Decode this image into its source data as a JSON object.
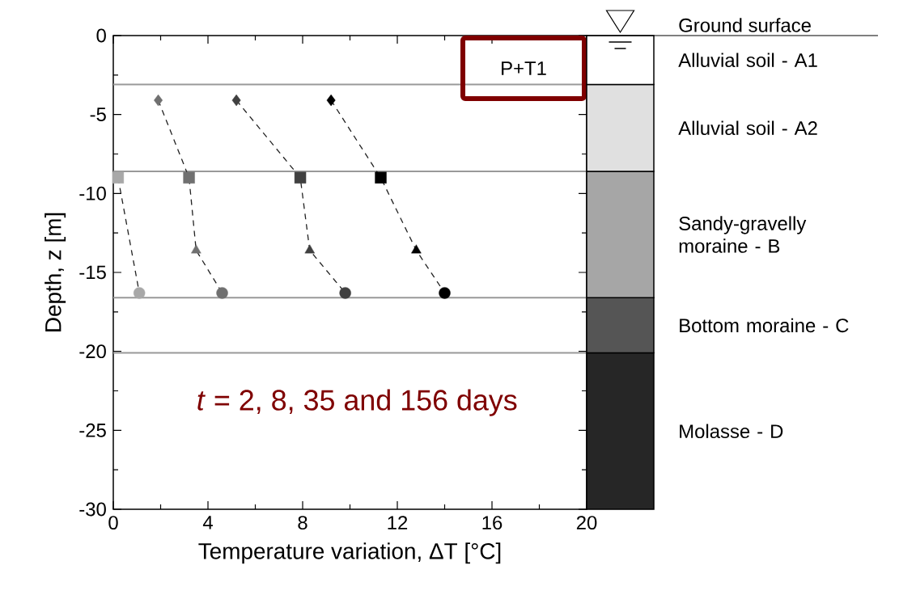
{
  "chart_data": [
    {
      "type": "line",
      "xlabel": "Temperature variation, ΔT [°C]",
      "ylabel": "Depth, z [m]",
      "xlim": [
        0,
        20
      ],
      "ylim": [
        -30,
        0
      ],
      "xticks": [
        0,
        4,
        8,
        12,
        16,
        20
      ],
      "yticks": [
        0,
        -5,
        -10,
        -15,
        -20,
        -25,
        -30
      ],
      "line_style": "dashed",
      "grid": false,
      "series": [
        {
          "type": "line",
          "color": "#222222",
          "x": [
            0.2,
            1.1
          ],
          "values": [
            -9.0,
            -16.3
          ]
        },
        {
          "type": "line",
          "color": "#222222",
          "x": [
            1.9,
            3.2,
            3.5,
            4.6
          ],
          "values": [
            -4.1,
            -9.0,
            -13.6,
            -16.3
          ]
        },
        {
          "type": "line",
          "color": "#222222",
          "x": [
            5.2,
            7.9,
            8.3,
            9.8
          ],
          "values": [
            -4.1,
            -9.0,
            -13.6,
            -16.3
          ]
        },
        {
          "type": "line",
          "color": "#222222",
          "x": [
            9.2,
            11.3,
            12.8,
            14.0
          ],
          "values": [
            -4.1,
            -9.0,
            -13.6,
            -16.3
          ]
        },
        {
          "type": "scatter",
          "marker": "diamond",
          "x": [
            1.9,
            5.2,
            9.2
          ],
          "values": [
            -4.1,
            -4.1,
            -4.1
          ],
          "colors": [
            "#707070",
            "#404040",
            "#000000"
          ]
        },
        {
          "type": "scatter",
          "marker": "square",
          "x": [
            0.2,
            3.2,
            7.9,
            11.3
          ],
          "values": [
            -9.0,
            -9.0,
            -9.0,
            -9.0
          ],
          "colors": [
            "#a8a8a8",
            "#707070",
            "#404040",
            "#000000"
          ]
        },
        {
          "type": "scatter",
          "marker": "triangle",
          "x": [
            3.5,
            8.3,
            12.8
          ],
          "values": [
            -13.6,
            -13.6,
            -13.6
          ],
          "colors": [
            "#707070",
            "#404040",
            "#000000"
          ]
        },
        {
          "type": "scatter",
          "marker": "circle",
          "x": [
            1.1,
            4.6,
            9.8,
            14.0
          ],
          "values": [
            -16.3,
            -16.3,
            -16.3,
            -16.3
          ],
          "colors": [
            "#a8a8a8",
            "#707070",
            "#404040",
            "#000000"
          ]
        }
      ],
      "ref_lines": [
        {
          "axis": "y",
          "value": -3.1,
          "color": "#999999"
        },
        {
          "axis": "y",
          "value": -8.6,
          "color": "#999999"
        },
        {
          "axis": "y",
          "value": -16.6,
          "color": "#999999"
        },
        {
          "axis": "y",
          "value": -20.1,
          "color": "#999999"
        }
      ],
      "annotations": [
        "P+T1",
        "*t* = 2, 8, 35 and 156 days"
      ]
    },
    {
      "type": "bar",
      "stacked": true,
      "categories": [
        null
      ],
      "ylim": [
        -30,
        0
      ],
      "tick_labels": false,
      "series": [
        {
          "name": "Alluvial soil - A1",
          "color": "#ffffff",
          "values": [
            -3.1
          ]
        },
        {
          "name": "Alluvial soil - A2",
          "color": "#e0e0e0",
          "values": [
            -5.5
          ]
        },
        {
          "name": "Sandy-gravelly moraine - B",
          "color": "#a6a6a6",
          "values": [
            -8.0
          ]
        },
        {
          "name": "Bottom moraine - C",
          "color": "#555555",
          "values": [
            -3.5
          ]
        },
        {
          "name": "Molasse - D",
          "color": "#262626",
          "values": [
            -9.9
          ]
        }
      ],
      "annotations": [
        "Ground surface"
      ]
    }
  ]
}
